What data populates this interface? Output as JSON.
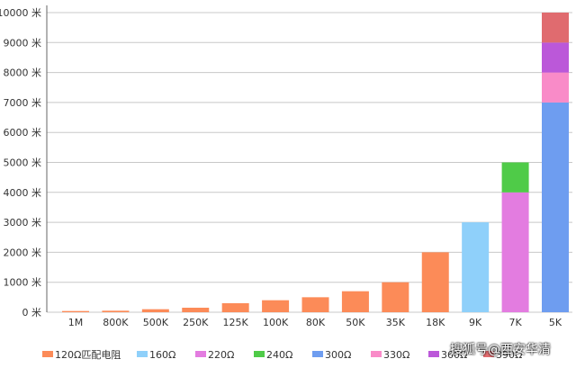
{
  "chart_data": {
    "type": "bar",
    "stacked": true,
    "categories": [
      "1M",
      "800K",
      "500K",
      "250K",
      "125K",
      "100K",
      "80K",
      "50K",
      "35K",
      "18K",
      "9K",
      "7K",
      "5K"
    ],
    "y_unit": "米",
    "ylim": [
      0,
      10000
    ],
    "yticks": [
      0,
      1000,
      2000,
      3000,
      4000,
      5000,
      6000,
      7000,
      8000,
      9000,
      10000
    ],
    "grid": true,
    "legend_position": "bottom",
    "series": [
      {
        "name": "120Ω匹配电阻",
        "color": "#fc8b58",
        "values": [
          40,
          50,
          100,
          150,
          300,
          400,
          500,
          700,
          1000,
          2000,
          0,
          0,
          0
        ]
      },
      {
        "name": "160Ω",
        "color": "#8fd0fa",
        "values": [
          0,
          0,
          0,
          0,
          0,
          0,
          0,
          0,
          0,
          0,
          3000,
          0,
          0
        ]
      },
      {
        "name": "220Ω",
        "color": "#e37ce0",
        "values": [
          0,
          0,
          0,
          0,
          0,
          0,
          0,
          0,
          0,
          0,
          0,
          4000,
          0
        ]
      },
      {
        "name": "240Ω",
        "color": "#4fcb48",
        "values": [
          0,
          0,
          0,
          0,
          0,
          0,
          0,
          0,
          0,
          0,
          0,
          1000,
          0
        ]
      },
      {
        "name": "300Ω",
        "color": "#6e9df0",
        "values": [
          0,
          0,
          0,
          0,
          0,
          0,
          0,
          0,
          0,
          0,
          0,
          0,
          7000
        ]
      },
      {
        "name": "330Ω",
        "color": "#f98bc8",
        "values": [
          0,
          0,
          0,
          0,
          0,
          0,
          0,
          0,
          0,
          0,
          0,
          0,
          1000
        ]
      },
      {
        "name": "360Ω",
        "color": "#bb58d9",
        "values": [
          0,
          0,
          0,
          0,
          0,
          0,
          0,
          0,
          0,
          0,
          0,
          0,
          1000
        ]
      },
      {
        "name": "390Ω",
        "color": "#e06b6f",
        "values": [
          0,
          0,
          0,
          0,
          0,
          0,
          0,
          0,
          0,
          0,
          0,
          0,
          1000
        ]
      }
    ]
  },
  "watermark": "搜狐号@西安华清"
}
